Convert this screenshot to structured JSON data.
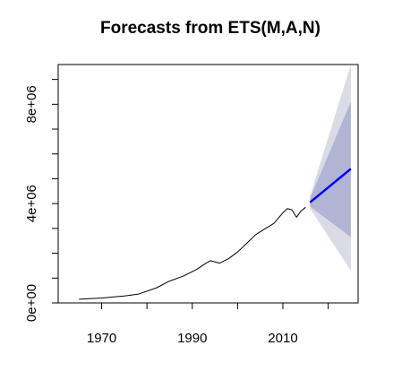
{
  "chart_data": {
    "type": "line",
    "title": "Forecasts from ETS(M,A,N)",
    "xlabel": "",
    "ylabel": "",
    "xlim": [
      1960.4,
      2026.6
    ],
    "ylim": [
      0,
      9600000
    ],
    "grid": false,
    "legend": "none",
    "x_ticks": [
      1970,
      1990,
      2010
    ],
    "x_tick_labels": [
      "1970",
      "1990",
      "2010"
    ],
    "y_ticks": [
      0,
      2000000,
      4000000,
      6000000,
      8000000
    ],
    "y_tick_labels": [
      "0e+00",
      "",
      "4e+06",
      "",
      "8e+06"
    ],
    "series": [
      {
        "role": "observed",
        "color": "#000000",
        "x": [
          1965,
          1970,
          1975,
          1978,
          1982,
          1985,
          1988,
          1991,
          1993,
          1994,
          1996,
          1998,
          2000,
          2002,
          2004,
          2006,
          2008,
          2010,
          2011,
          2012,
          2013,
          2014,
          2015
        ],
        "y": [
          150000,
          200000,
          280000,
          350000,
          600000,
          880000,
          1080000,
          1350000,
          1600000,
          1700000,
          1600000,
          1780000,
          2050000,
          2400000,
          2750000,
          2980000,
          3200000,
          3630000,
          3800000,
          3750000,
          3450000,
          3700000,
          3850000
        ]
      },
      {
        "role": "point-forecast",
        "color": "#0000ee",
        "x": [
          2016,
          2025
        ],
        "y": [
          4050000,
          5400000
        ]
      }
    ],
    "intervals": [
      {
        "level": 95,
        "color": "#dbdbe5",
        "x": [
          2016,
          2025
        ],
        "lower": [
          3800000,
          1300000
        ],
        "upper": [
          4300000,
          9600000
        ]
      },
      {
        "level": 80,
        "color": "#b1b5d5",
        "x": [
          2016,
          2025
        ],
        "lower": [
          3880000,
          2650000
        ],
        "upper": [
          4220000,
          8100000
        ]
      }
    ]
  }
}
